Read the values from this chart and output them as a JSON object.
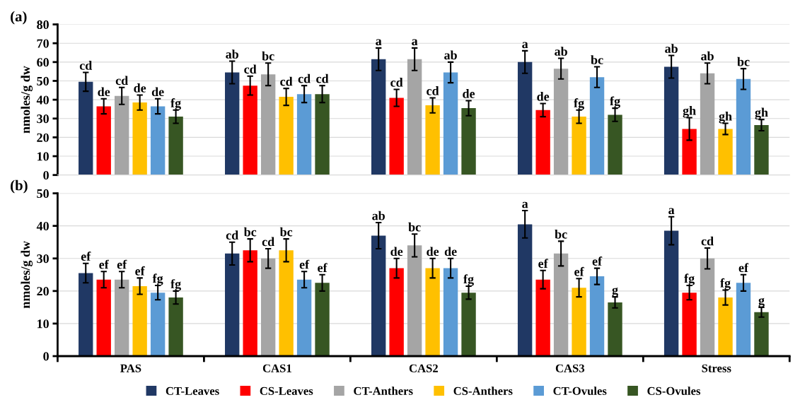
{
  "chart_data": [
    {
      "type": "bar",
      "title": "(a)",
      "ylabel": "nmoles/g dw",
      "categories": [
        null,
        null,
        null,
        null,
        null
      ],
      "ylim": [
        0,
        80
      ],
      "yticks": [
        0,
        10,
        20,
        30,
        40,
        50,
        60,
        70,
        80
      ],
      "grid": "y",
      "series": [
        {
          "color": "#203864",
          "values": [
            49.5,
            54.5,
            61.5,
            60,
            57.5
          ],
          "errors": [
            5,
            6,
            6,
            6,
            6
          ],
          "value_labels": [
            "cd",
            "ab",
            "a",
            "a",
            "ab"
          ]
        },
        {
          "color": "#ff0000",
          "values": [
            36.5,
            47.5,
            41,
            34.5,
            24.5
          ],
          "errors": [
            4,
            5,
            4.5,
            3.5,
            6
          ],
          "value_labels": [
            "de",
            "cd",
            "cd",
            "de",
            "gh"
          ]
        },
        {
          "color": "#a5a5a5",
          "values": [
            42,
            53.5,
            61.5,
            56.5,
            54
          ],
          "errors": [
            4.5,
            6,
            6,
            5.5,
            5.5
          ],
          "value_labels": [
            "cd",
            "bc",
            "a",
            "ab",
            "ab"
          ]
        },
        {
          "color": "#ffc000",
          "values": [
            38.5,
            41.5,
            37,
            31,
            24.5
          ],
          "errors": [
            4,
            4.5,
            4,
            3.5,
            3
          ],
          "value_labels": [
            "de",
            "cd",
            "cd",
            "fg",
            "gh"
          ]
        },
        {
          "color": "#5b9bd5",
          "values": [
            36.5,
            43,
            54.5,
            52,
            51
          ],
          "errors": [
            4,
            4.5,
            5.5,
            5.5,
            5.5
          ],
          "value_labels": [
            "de",
            "cd",
            "ab",
            "bc",
            "bc"
          ]
        },
        {
          "color": "#375623",
          "values": [
            31,
            43,
            35.5,
            32,
            26.5
          ],
          "errors": [
            3.5,
            4.5,
            4,
            3.5,
            3
          ],
          "value_labels": [
            "fg",
            "cd",
            "de",
            "fg",
            "gh"
          ]
        }
      ]
    },
    {
      "type": "bar",
      "title": "(b)",
      "ylabel": "nmoles/g dw",
      "categories": [
        "PAS",
        "CAS1",
        "CAS2",
        "CAS3",
        "Stress"
      ],
      "ylim": [
        0,
        50
      ],
      "yticks": [
        0,
        10,
        20,
        30,
        40,
        50
      ],
      "grid": "y",
      "legend": "bottom",
      "series": [
        {
          "name": "CT-Leaves",
          "color": "#203864",
          "values": [
            25.5,
            31.5,
            37,
            40.5,
            38.5
          ],
          "errors": [
            3,
            3.5,
            4,
            4.2,
            4.3
          ],
          "value_labels": [
            "ef",
            "cd",
            "ab",
            "a",
            "a"
          ]
        },
        {
          "name": "CS-Leaves",
          "color": "#ff0000",
          "values": [
            23.5,
            32.5,
            27,
            23.5,
            19.5
          ],
          "errors": [
            2.5,
            3.5,
            3,
            2.8,
            2.2
          ],
          "value_labels": [
            "ef",
            "bc",
            "de",
            "ef",
            "fg"
          ]
        },
        {
          "name": "CT-Anthers",
          "color": "#a5a5a5",
          "values": [
            23.5,
            30,
            34,
            31.5,
            30
          ],
          "errors": [
            2.5,
            3,
            3.5,
            3.8,
            3.2
          ],
          "value_labels": [
            "ef",
            "cd",
            "bc",
            "bc",
            "cd"
          ]
        },
        {
          "name": "CS-Anthers",
          "color": "#ffc000",
          "values": [
            21.5,
            32.5,
            27,
            21,
            18
          ],
          "errors": [
            2.5,
            3.5,
            3,
            2.8,
            2.3
          ],
          "value_labels": [
            "ef",
            "bc",
            "de",
            "ef",
            "fg"
          ]
        },
        {
          "name": "CT-Ovules",
          "color": "#5b9bd5",
          "values": [
            19.5,
            23.5,
            27,
            24.5,
            22.5
          ],
          "errors": [
            2.2,
            2.5,
            3,
            2.5,
            2.5
          ],
          "value_labels": [
            "fg",
            "ef",
            "de",
            "ef",
            "ef"
          ]
        },
        {
          "name": "CS-Ovules",
          "color": "#375623",
          "values": [
            18,
            22.5,
            19.5,
            16.5,
            13.5
          ],
          "errors": [
            2,
            2.5,
            2,
            1.7,
            1.5
          ],
          "value_labels": [
            "fg",
            "ef",
            "fg",
            "g",
            "g"
          ]
        }
      ]
    }
  ]
}
